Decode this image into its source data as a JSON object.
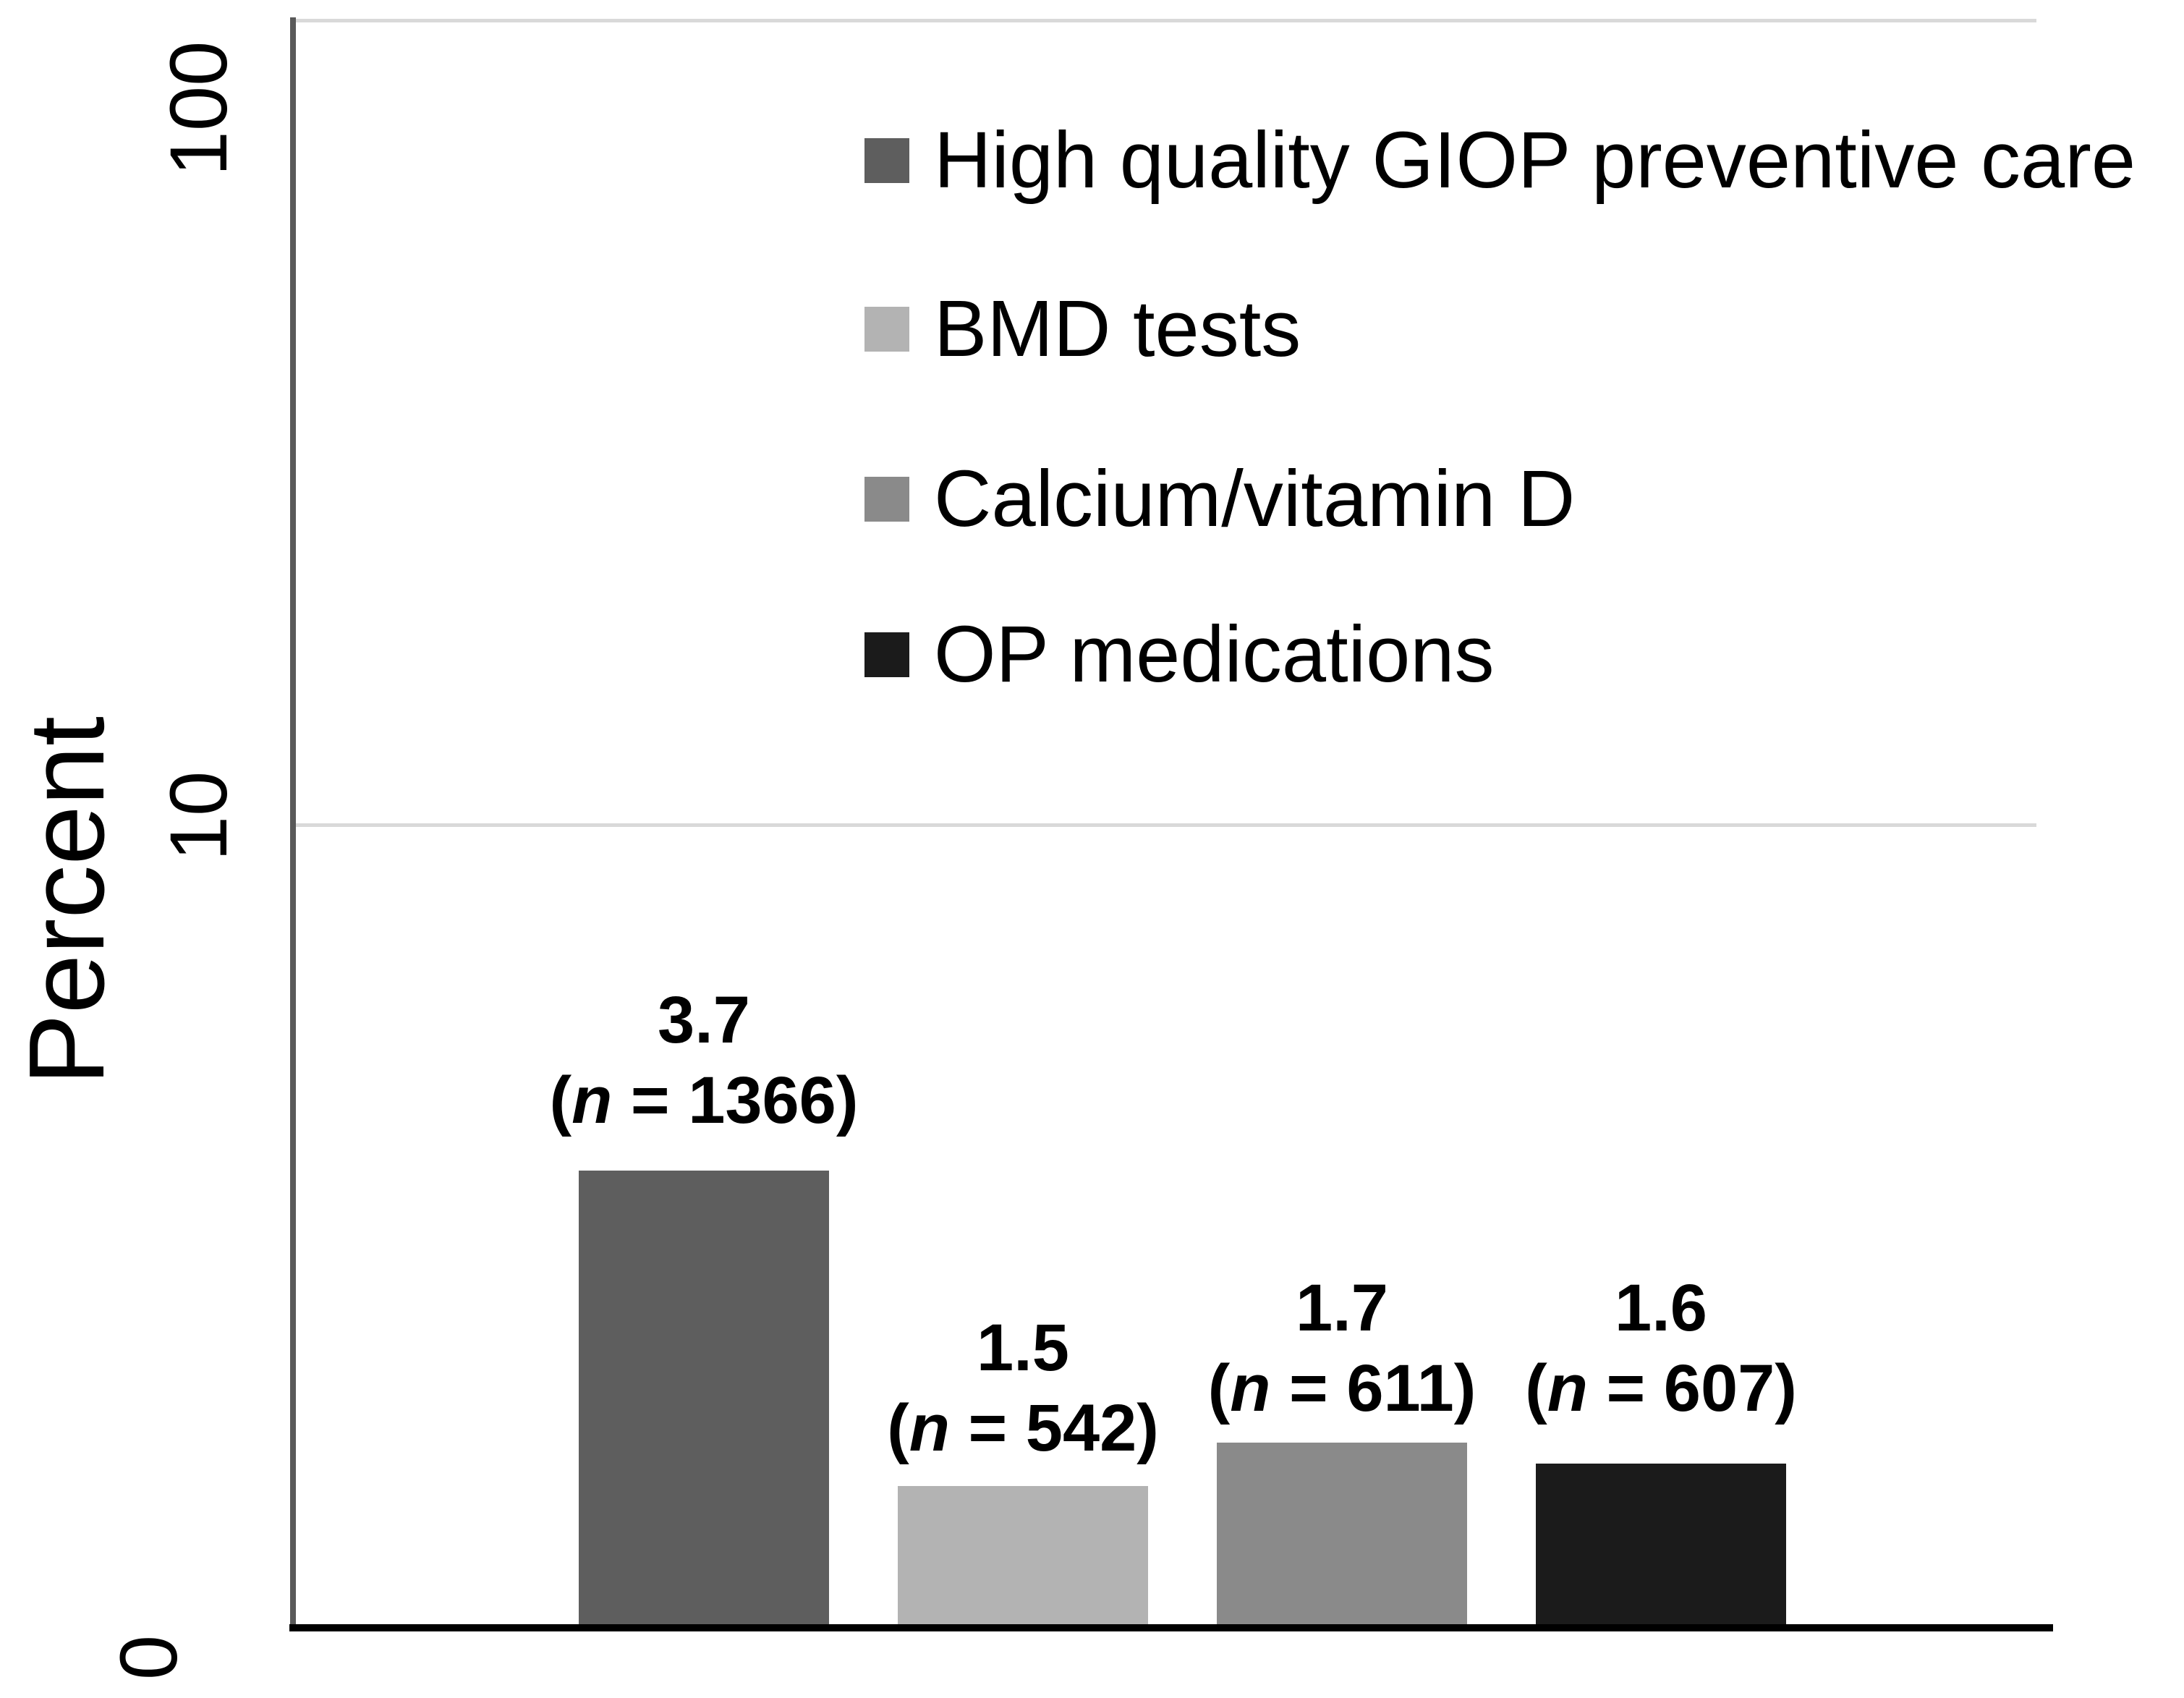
{
  "chart_data": {
    "type": "bar",
    "title": "",
    "xlabel": "",
    "ylabel": "Percent",
    "yscale": "log",
    "ytick_labels": [
      "100",
      "10",
      "0"
    ],
    "ylim": [
      1,
      130
    ],
    "grid": "horizontal-major",
    "legend_position": "top-right-inside",
    "categories": [
      "High quality GIOP preventive care",
      "BMD tests",
      "Calcium/vitamin D",
      "OP medications"
    ],
    "values": [
      3.7,
      1.5,
      1.7,
      1.6
    ],
    "value_labels": [
      "3.7",
      "1.5",
      "1.7",
      "1.6"
    ],
    "counts": [
      "1366",
      "542",
      "611",
      "607"
    ],
    "colors": [
      "#5e5e5e",
      "#b3b3b3",
      "#8a8a8a",
      "#1b1b1b"
    ],
    "n_label": {
      "open": "(",
      "sym": "n",
      "eq": " = ",
      "close": ")"
    },
    "gridline_color": "#d9d9d9",
    "y_axis_color": "#595959",
    "x_axis_color": "#000000"
  }
}
